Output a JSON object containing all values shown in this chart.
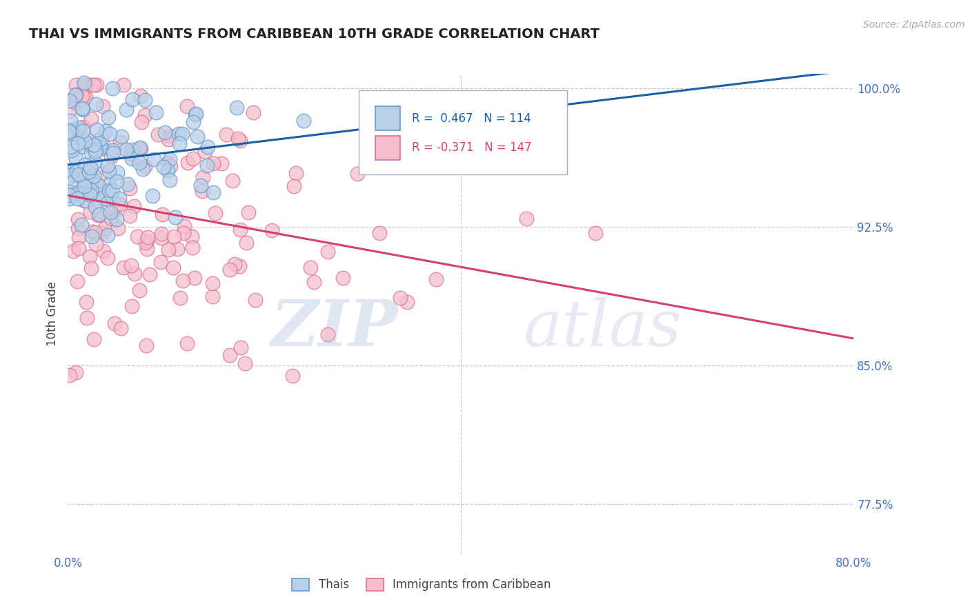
{
  "title": "THAI VS IMMIGRANTS FROM CARIBBEAN 10TH GRADE CORRELATION CHART",
  "source": "Source: ZipAtlas.com",
  "ylabel": "10th Grade",
  "xlim": [
    0.0,
    0.8
  ],
  "ylim": [
    0.748,
    1.008
  ],
  "xticks": [
    0.0,
    0.2,
    0.4,
    0.6,
    0.8
  ],
  "xticklabels": [
    "0.0%",
    "",
    "",
    "",
    "80.0%"
  ],
  "yticks": [
    0.775,
    0.85,
    0.925,
    1.0
  ],
  "yticklabels": [
    "77.5%",
    "85.0%",
    "92.5%",
    "100.0%"
  ],
  "blue_R": 0.467,
  "blue_N": 114,
  "pink_R": -0.371,
  "pink_N": 147,
  "blue_color": "#b8d0e8",
  "blue_edge": "#6699cc",
  "pink_color": "#f5c0cc",
  "pink_edge": "#dd7090",
  "trend_blue": "#1a5fa8",
  "trend_pink": "#d44070",
  "legend_label_blue": "Thais",
  "legend_label_pink": "Immigrants from Caribbean",
  "watermark_zip": "ZIP",
  "watermark_atlas": "atlas",
  "blue_seed": 12,
  "pink_seed": 99
}
